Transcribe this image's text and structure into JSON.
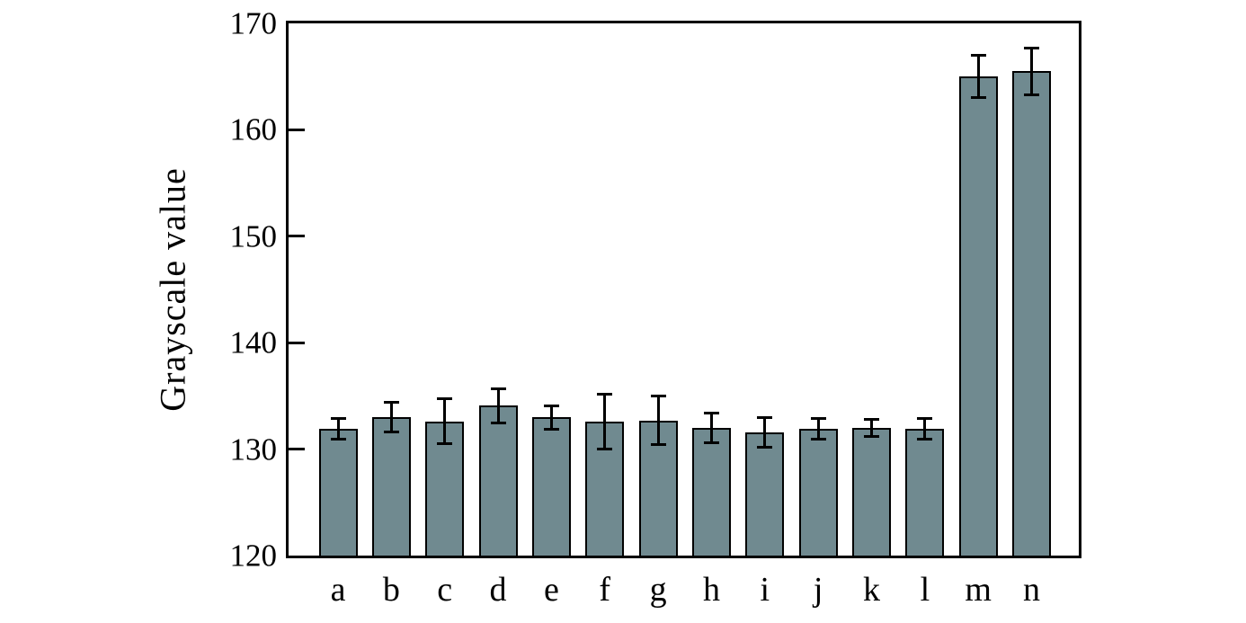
{
  "chart_data": {
    "type": "bar",
    "title": "",
    "xlabel": "",
    "ylabel": "Grayscale value",
    "categories": [
      "a",
      "b",
      "c",
      "d",
      "e",
      "f",
      "g",
      "h",
      "i",
      "j",
      "k",
      "l",
      "m",
      "n"
    ],
    "values": [
      131.9,
      133.0,
      132.6,
      134.1,
      133.0,
      132.6,
      132.7,
      132.0,
      131.6,
      131.9,
      132.0,
      131.9,
      165.0,
      165.5
    ],
    "errors": [
      1.0,
      1.4,
      2.1,
      1.6,
      1.1,
      2.6,
      2.3,
      1.4,
      1.4,
      1.0,
      0.8,
      1.0,
      2.0,
      2.2
    ],
    "ylim": [
      120,
      170
    ],
    "yticks": [
      120,
      130,
      140,
      150,
      160,
      170
    ],
    "grid": false,
    "legend_position": "none",
    "bar_color": "#708A90",
    "bar_border_color": "#000000",
    "error_color": "#000000",
    "frame_color": "#000000",
    "background_color": "#ffffff"
  }
}
